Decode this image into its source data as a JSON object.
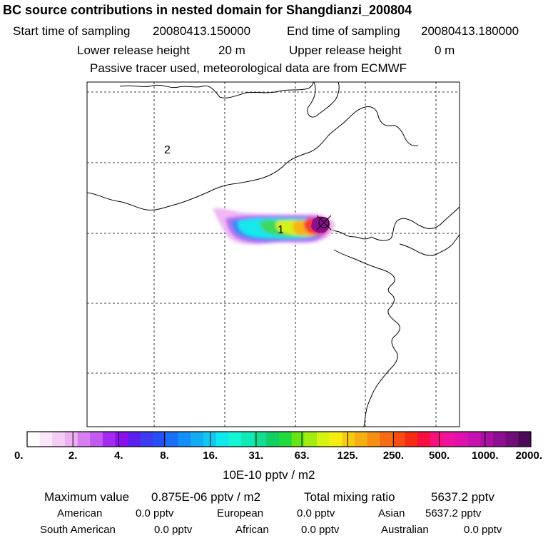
{
  "chart_data": {
    "type": "heatmap",
    "title": "BC  source contributions in nested domain for Shangdianzi_200804",
    "header": {
      "start_label": "Start time of sampling",
      "start_value": "20080413.150000",
      "end_label": "End time of sampling",
      "end_value": "20080413.180000",
      "lower_label": "Lower release height",
      "lower_value": "20 m",
      "upper_label": "Upper release height",
      "upper_value": "0 m",
      "tracer_note": "Passive tracer used, meteorological data are from ECMWF"
    },
    "map_labels": [
      "1",
      "2"
    ],
    "colorbar": {
      "tick_labels": [
        "0.",
        "2.",
        "4.",
        "8.",
        "16.",
        "31.",
        "63.",
        "125.",
        "250.",
        "500.",
        "1000.",
        "2000."
      ],
      "unit_label": "10E-10 pptv / m2",
      "colors": [
        "#ffffff",
        "#fbe8fb",
        "#f5cdf6",
        "#eeb0f3",
        "#d77ef0",
        "#c15af0",
        "#a22bef",
        "#8a10ee",
        "#5a20ee",
        "#3d3cf0",
        "#2650f3",
        "#1770f6",
        "#138ff7",
        "#14acf5",
        "#12c8f0",
        "#10e6ec",
        "#14f5d6",
        "#10eab7",
        "#14dd92",
        "#12d066",
        "#20d93b",
        "#67e414",
        "#a2ec10",
        "#d6f314",
        "#f7eb12",
        "#f7cc10",
        "#f7ae12",
        "#f78f12",
        "#f76c12",
        "#f74d12",
        "#f72a12",
        "#f70f40",
        "#f5127a",
        "#ef129c",
        "#e012ae",
        "#c612b0",
        "#a910a2",
        "#8d0f90",
        "#700d78",
        "#4e0a58"
      ]
    },
    "plume_colors": {
      "outer": "#f0b8f4",
      "purple": "#b070f5",
      "blue": "#3a8af5",
      "cyan": "#14e8ec",
      "green": "#3ed860",
      "yellow": "#d8f012",
      "orange": "#f7b412",
      "red": "#f73a3a",
      "core": "#8d0f90"
    },
    "summary": {
      "max_label": "Maximum value",
      "max_value": "0.875E-06 pptv / m2",
      "total_label": "Total mixing ratio",
      "total_value": "5637.2 pptv",
      "regions": [
        {
          "name": "American",
          "value": "0.0 pptv"
        },
        {
          "name": "European",
          "value": "0.0 pptv"
        },
        {
          "name": "Asian",
          "value": "5637.2 pptv"
        },
        {
          "name": "South American",
          "value": "0.0 pptv"
        },
        {
          "name": "African",
          "value": "0.0 pptv"
        },
        {
          "name": "Australian",
          "value": "0.0 pptv"
        }
      ]
    }
  }
}
